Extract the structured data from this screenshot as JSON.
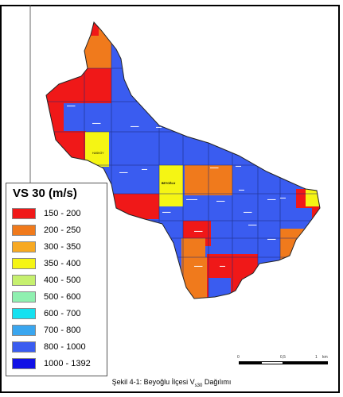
{
  "map": {
    "district_labels": [
      "BEYOĞLU",
      "HASKÖY"
    ],
    "colors": {
      "c150_200": "#f01818",
      "c200_250": "#f07a1c",
      "c300_350": "#f7a922",
      "c350_400": "#f5f514",
      "c400_500": "#c6f06e",
      "c500_600": "#8ff0b0",
      "c600_700": "#14e1f0",
      "c700_800": "#3aa6ef",
      "c800_1000": "#3a5cf0",
      "c1000_1392": "#1010e6",
      "boundary": "#222222",
      "inner_line": "#1b2a7a"
    }
  },
  "legend": {
    "title": "VS 30 (m/s)",
    "items": [
      {
        "label": "150 - 200",
        "color": "#f01818"
      },
      {
        "label": "200 - 250",
        "color": "#f07a1c"
      },
      {
        "label": "300 - 350",
        "color": "#f7a922"
      },
      {
        "label": "350 - 400",
        "color": "#f5f514"
      },
      {
        "label": "400 - 500",
        "color": "#c6f06e"
      },
      {
        "label": "500 - 600",
        "color": "#8ff0b0"
      },
      {
        "label": "600 - 700",
        "color": "#14e1f0"
      },
      {
        "label": "700 - 800",
        "color": "#3aa6ef"
      },
      {
        "label": "800 - 1000",
        "color": "#3a5cf0"
      },
      {
        "label": "1000 - 1392",
        "color": "#1010e6"
      }
    ]
  },
  "scale": {
    "ticks": [
      "0",
      "0,5",
      "1",
      "km"
    ]
  },
  "caption": {
    "prefix": "Şekil 4-1: Beyoğlu İlçesi V",
    "sub": "s30",
    "suffix": " Dağılımı"
  }
}
